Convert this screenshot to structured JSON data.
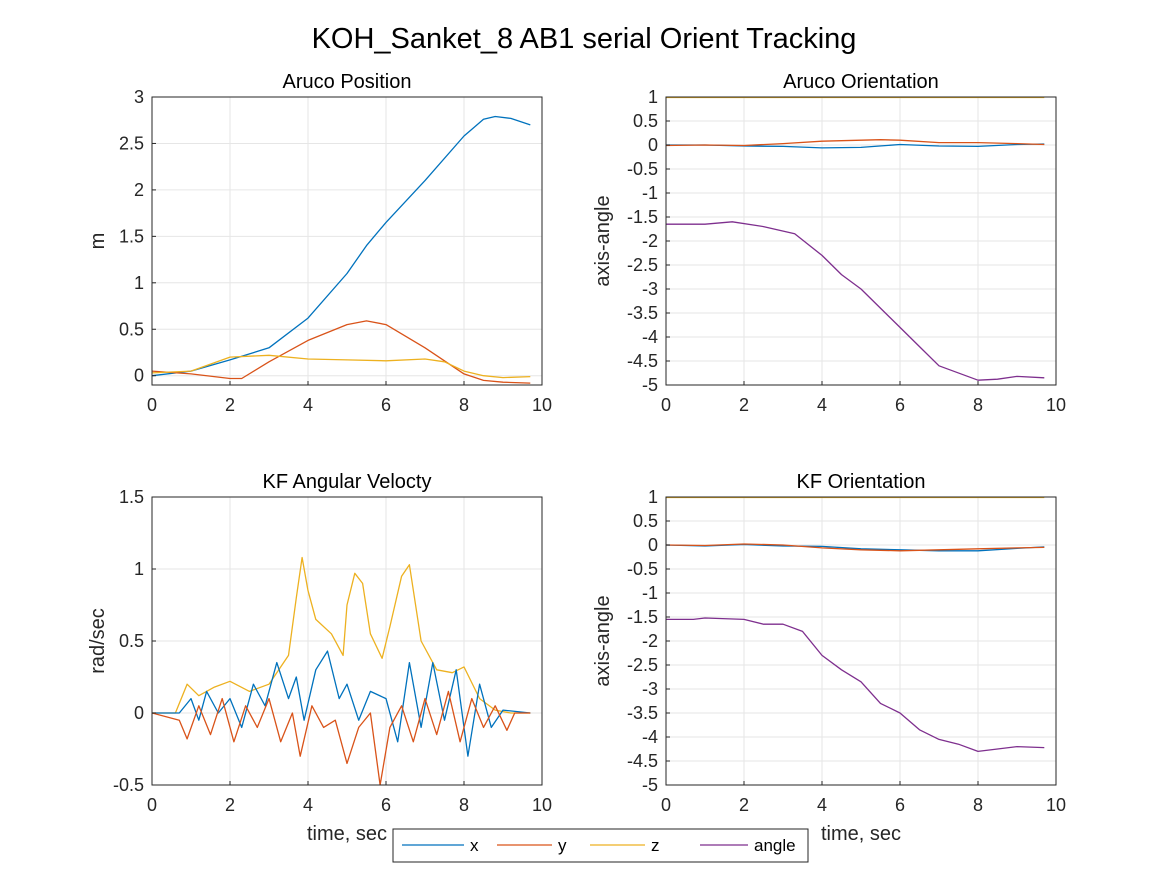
{
  "figure_title": "KOH_Sanket_8 AB1 serial Orient Tracking",
  "colors": {
    "x": "#0072BD",
    "y": "#D95319",
    "z": "#EDB120",
    "angle": "#7E2F8E",
    "grid": "#e6e6e6",
    "axis": "#262626"
  },
  "legend": {
    "entries": [
      {
        "name": "x",
        "color": "#0072BD"
      },
      {
        "name": "y",
        "color": "#D95319"
      },
      {
        "name": "z",
        "color": "#EDB120"
      },
      {
        "name": "angle",
        "color": "#7E2F8E"
      }
    ]
  },
  "chart_data": [
    {
      "type": "line",
      "title": "Aruco Position",
      "xlabel": "",
      "ylabel": "m",
      "xlim": [
        0,
        10
      ],
      "ylim": [
        -0.1,
        3
      ],
      "xticks": [
        0,
        2,
        4,
        6,
        8,
        10
      ],
      "yticks": [
        0,
        0.5,
        1,
        1.5,
        2,
        2.5,
        3
      ],
      "grid": true,
      "series": [
        {
          "key": "x",
          "points": [
            [
              0,
              0
            ],
            [
              1,
              0.05
            ],
            [
              2,
              0.17
            ],
            [
              3,
              0.3
            ],
            [
              4,
              0.62
            ],
            [
              5,
              1.1
            ],
            [
              5.5,
              1.4
            ],
            [
              6,
              1.65
            ],
            [
              7,
              2.1
            ],
            [
              8,
              2.58
            ],
            [
              8.5,
              2.76
            ],
            [
              8.8,
              2.79
            ],
            [
              9.2,
              2.77
            ],
            [
              9.7,
              2.7
            ]
          ]
        },
        {
          "key": "y",
          "points": [
            [
              0,
              0.05
            ],
            [
              1,
              0.02
            ],
            [
              2,
              -0.03
            ],
            [
              2.3,
              -0.03
            ],
            [
              3,
              0.15
            ],
            [
              4,
              0.38
            ],
            [
              5,
              0.55
            ],
            [
              5.5,
              0.59
            ],
            [
              6,
              0.55
            ],
            [
              7,
              0.3
            ],
            [
              8,
              0.02
            ],
            [
              8.5,
              -0.05
            ],
            [
              9,
              -0.07
            ],
            [
              9.7,
              -0.08
            ]
          ]
        },
        {
          "key": "z",
          "points": [
            [
              0,
              0.03
            ],
            [
              1,
              0.05
            ],
            [
              2,
              0.2
            ],
            [
              3,
              0.22
            ],
            [
              4,
              0.18
            ],
            [
              5,
              0.17
            ],
            [
              6,
              0.16
            ],
            [
              7,
              0.18
            ],
            [
              7.5,
              0.15
            ],
            [
              8,
              0.05
            ],
            [
              8.5,
              0.0
            ],
            [
              9,
              -0.02
            ],
            [
              9.7,
              -0.01
            ]
          ]
        }
      ]
    },
    {
      "type": "line",
      "title": "Aruco Orientation",
      "xlabel": "",
      "ylabel": "axis-angle",
      "xlim": [
        0,
        10
      ],
      "ylim": [
        -5,
        1
      ],
      "xticks": [
        0,
        2,
        4,
        6,
        8,
        10
      ],
      "yticks": [
        1,
        0.5,
        0,
        -0.5,
        -1,
        -1.5,
        -2,
        -2.5,
        -3,
        -3.5,
        -4,
        -4.5,
        -5
      ],
      "grid": true,
      "series": [
        {
          "key": "x",
          "points": [
            [
              0,
              0
            ],
            [
              1,
              0
            ],
            [
              2,
              -0.02
            ],
            [
              3,
              -0.03
            ],
            [
              4,
              -0.06
            ],
            [
              5,
              -0.05
            ],
            [
              6,
              0.01
            ],
            [
              7,
              -0.02
            ],
            [
              8,
              -0.03
            ],
            [
              9,
              0.01
            ],
            [
              9.7,
              0.02
            ]
          ]
        },
        {
          "key": "y",
          "points": [
            [
              0,
              -0.01
            ],
            [
              1,
              0
            ],
            [
              2,
              -0.01
            ],
            [
              3,
              0.03
            ],
            [
              4,
              0.08
            ],
            [
              5,
              0.1
            ],
            [
              5.5,
              0.11
            ],
            [
              6,
              0.1
            ],
            [
              7,
              0.05
            ],
            [
              8,
              0.05
            ],
            [
              9,
              0.03
            ],
            [
              9.7,
              0.01
            ]
          ]
        },
        {
          "key": "z",
          "points": [
            [
              0,
              0.99
            ],
            [
              2,
              0.99
            ],
            [
              4,
              0.99
            ],
            [
              6,
              0.99
            ],
            [
              8,
              0.99
            ],
            [
              9.7,
              0.99
            ]
          ]
        },
        {
          "key": "angle",
          "points": [
            [
              0,
              -1.65
            ],
            [
              1,
              -1.65
            ],
            [
              1.7,
              -1.6
            ],
            [
              2.5,
              -1.7
            ],
            [
              3.3,
              -1.85
            ],
            [
              4,
              -2.3
            ],
            [
              4.5,
              -2.7
            ],
            [
              5,
              -3.0
            ],
            [
              6,
              -3.8
            ],
            [
              6.5,
              -4.2
            ],
            [
              7,
              -4.6
            ],
            [
              8,
              -4.9
            ],
            [
              8.5,
              -4.88
            ],
            [
              9,
              -4.82
            ],
            [
              9.7,
              -4.85
            ]
          ]
        }
      ]
    },
    {
      "type": "line",
      "title": "KF Angular Velocty",
      "xlabel": "time, sec",
      "ylabel": "rad/sec",
      "xlim": [
        0,
        10
      ],
      "ylim": [
        -0.5,
        1.5
      ],
      "xticks": [
        0,
        2,
        4,
        6,
        8,
        10
      ],
      "yticks": [
        -0.5,
        0,
        0.5,
        1,
        1.5
      ],
      "grid": true,
      "series": [
        {
          "key": "z",
          "points": [
            [
              0,
              0
            ],
            [
              0.6,
              0
            ],
            [
              0.9,
              0.2
            ],
            [
              1.2,
              0.12
            ],
            [
              1.6,
              0.18
            ],
            [
              2,
              0.22
            ],
            [
              2.5,
              0.15
            ],
            [
              3,
              0.2
            ],
            [
              3.5,
              0.4
            ],
            [
              3.7,
              0.8
            ],
            [
              3.85,
              1.08
            ],
            [
              4.0,
              0.85
            ],
            [
              4.2,
              0.65
            ],
            [
              4.6,
              0.55
            ],
            [
              4.9,
              0.4
            ],
            [
              5.0,
              0.75
            ],
            [
              5.2,
              0.97
            ],
            [
              5.4,
              0.9
            ],
            [
              5.6,
              0.55
            ],
            [
              5.9,
              0.38
            ],
            [
              6.1,
              0.6
            ],
            [
              6.4,
              0.95
            ],
            [
              6.6,
              1.03
            ],
            [
              6.9,
              0.5
            ],
            [
              7.3,
              0.3
            ],
            [
              7.7,
              0.28
            ],
            [
              8.0,
              0.32
            ],
            [
              8.4,
              0.1
            ],
            [
              8.8,
              0.02
            ],
            [
              9.2,
              0
            ],
            [
              9.7,
              0
            ]
          ]
        },
        {
          "key": "x",
          "points": [
            [
              0,
              0
            ],
            [
              0.7,
              0
            ],
            [
              1.0,
              0.1
            ],
            [
              1.2,
              -0.05
            ],
            [
              1.4,
              0.15
            ],
            [
              1.7,
              0
            ],
            [
              2,
              0.1
            ],
            [
              2.3,
              -0.1
            ],
            [
              2.6,
              0.2
            ],
            [
              2.9,
              0.05
            ],
            [
              3.2,
              0.35
            ],
            [
              3.5,
              0.1
            ],
            [
              3.7,
              0.25
            ],
            [
              3.9,
              -0.05
            ],
            [
              4.2,
              0.3
            ],
            [
              4.5,
              0.43
            ],
            [
              4.8,
              0.1
            ],
            [
              5.0,
              0.2
            ],
            [
              5.3,
              -0.05
            ],
            [
              5.6,
              0.15
            ],
            [
              6.0,
              0.1
            ],
            [
              6.3,
              -0.2
            ],
            [
              6.6,
              0.35
            ],
            [
              6.9,
              -0.1
            ],
            [
              7.2,
              0.35
            ],
            [
              7.5,
              -0.05
            ],
            [
              7.8,
              0.3
            ],
            [
              8.1,
              -0.3
            ],
            [
              8.4,
              0.2
            ],
            [
              8.7,
              -0.1
            ],
            [
              9.0,
              0.02
            ],
            [
              9.7,
              0
            ]
          ]
        },
        {
          "key": "y",
          "points": [
            [
              0,
              0
            ],
            [
              0.7,
              -0.05
            ],
            [
              0.9,
              -0.18
            ],
            [
              1.2,
              0.05
            ],
            [
              1.5,
              -0.15
            ],
            [
              1.8,
              0.1
            ],
            [
              2.1,
              -0.2
            ],
            [
              2.4,
              0.05
            ],
            [
              2.7,
              -0.1
            ],
            [
              3.0,
              0.1
            ],
            [
              3.3,
              -0.2
            ],
            [
              3.6,
              0.0
            ],
            [
              3.8,
              -0.3
            ],
            [
              4.1,
              0.05
            ],
            [
              4.4,
              -0.1
            ],
            [
              4.7,
              -0.05
            ],
            [
              5.0,
              -0.35
            ],
            [
              5.3,
              -0.1
            ],
            [
              5.6,
              0.0
            ],
            [
              5.85,
              -0.5
            ],
            [
              6.1,
              -0.1
            ],
            [
              6.4,
              0.05
            ],
            [
              6.7,
              -0.2
            ],
            [
              7.0,
              0.1
            ],
            [
              7.3,
              -0.15
            ],
            [
              7.6,
              0.15
            ],
            [
              7.9,
              -0.2
            ],
            [
              8.2,
              0.1
            ],
            [
              8.5,
              -0.1
            ],
            [
              8.8,
              0.05
            ],
            [
              9.1,
              -0.12
            ],
            [
              9.3,
              0
            ],
            [
              9.7,
              0
            ]
          ]
        }
      ]
    },
    {
      "type": "line",
      "title": "KF Orientation",
      "xlabel": "time, sec",
      "ylabel": "axis-angle",
      "xlim": [
        0,
        10
      ],
      "ylim": [
        -5,
        1
      ],
      "xticks": [
        0,
        2,
        4,
        6,
        8,
        10
      ],
      "yticks": [
        1,
        0.5,
        0,
        -0.5,
        -1,
        -1.5,
        -2,
        -2.5,
        -3,
        -3.5,
        -4,
        -4.5,
        -5
      ],
      "grid": true,
      "series": [
        {
          "key": "x",
          "points": [
            [
              0,
              0
            ],
            [
              1,
              -0.02
            ],
            [
              2,
              0.01
            ],
            [
              3,
              -0.02
            ],
            [
              4,
              -0.03
            ],
            [
              5,
              -0.08
            ],
            [
              6,
              -0.1
            ],
            [
              7,
              -0.12
            ],
            [
              8,
              -0.12
            ],
            [
              9,
              -0.07
            ],
            [
              9.7,
              -0.04
            ]
          ]
        },
        {
          "key": "y",
          "points": [
            [
              0,
              0
            ],
            [
              1,
              -0.01
            ],
            [
              2,
              0.02
            ],
            [
              3,
              0.0
            ],
            [
              4,
              -0.06
            ],
            [
              5,
              -0.1
            ],
            [
              6,
              -0.12
            ],
            [
              7,
              -0.1
            ],
            [
              8,
              -0.08
            ],
            [
              9,
              -0.06
            ],
            [
              9.7,
              -0.05
            ]
          ]
        },
        {
          "key": "z",
          "points": [
            [
              0,
              0.99
            ],
            [
              2,
              0.99
            ],
            [
              4,
              0.99
            ],
            [
              6,
              0.99
            ],
            [
              8,
              0.99
            ],
            [
              9.7,
              0.99
            ]
          ]
        },
        {
          "key": "angle",
          "points": [
            [
              0,
              -1.55
            ],
            [
              0.7,
              -1.55
            ],
            [
              1,
              -1.52
            ],
            [
              2,
              -1.55
            ],
            [
              2.5,
              -1.65
            ],
            [
              3,
              -1.65
            ],
            [
              3.5,
              -1.8
            ],
            [
              4,
              -2.3
            ],
            [
              4.5,
              -2.6
            ],
            [
              5,
              -2.85
            ],
            [
              5.5,
              -3.3
            ],
            [
              6,
              -3.5
            ],
            [
              6.5,
              -3.85
            ],
            [
              7,
              -4.05
            ],
            [
              7.5,
              -4.15
            ],
            [
              8,
              -4.3
            ],
            [
              8.5,
              -4.25
            ],
            [
              9,
              -4.2
            ],
            [
              9.7,
              -4.22
            ]
          ]
        }
      ]
    }
  ]
}
